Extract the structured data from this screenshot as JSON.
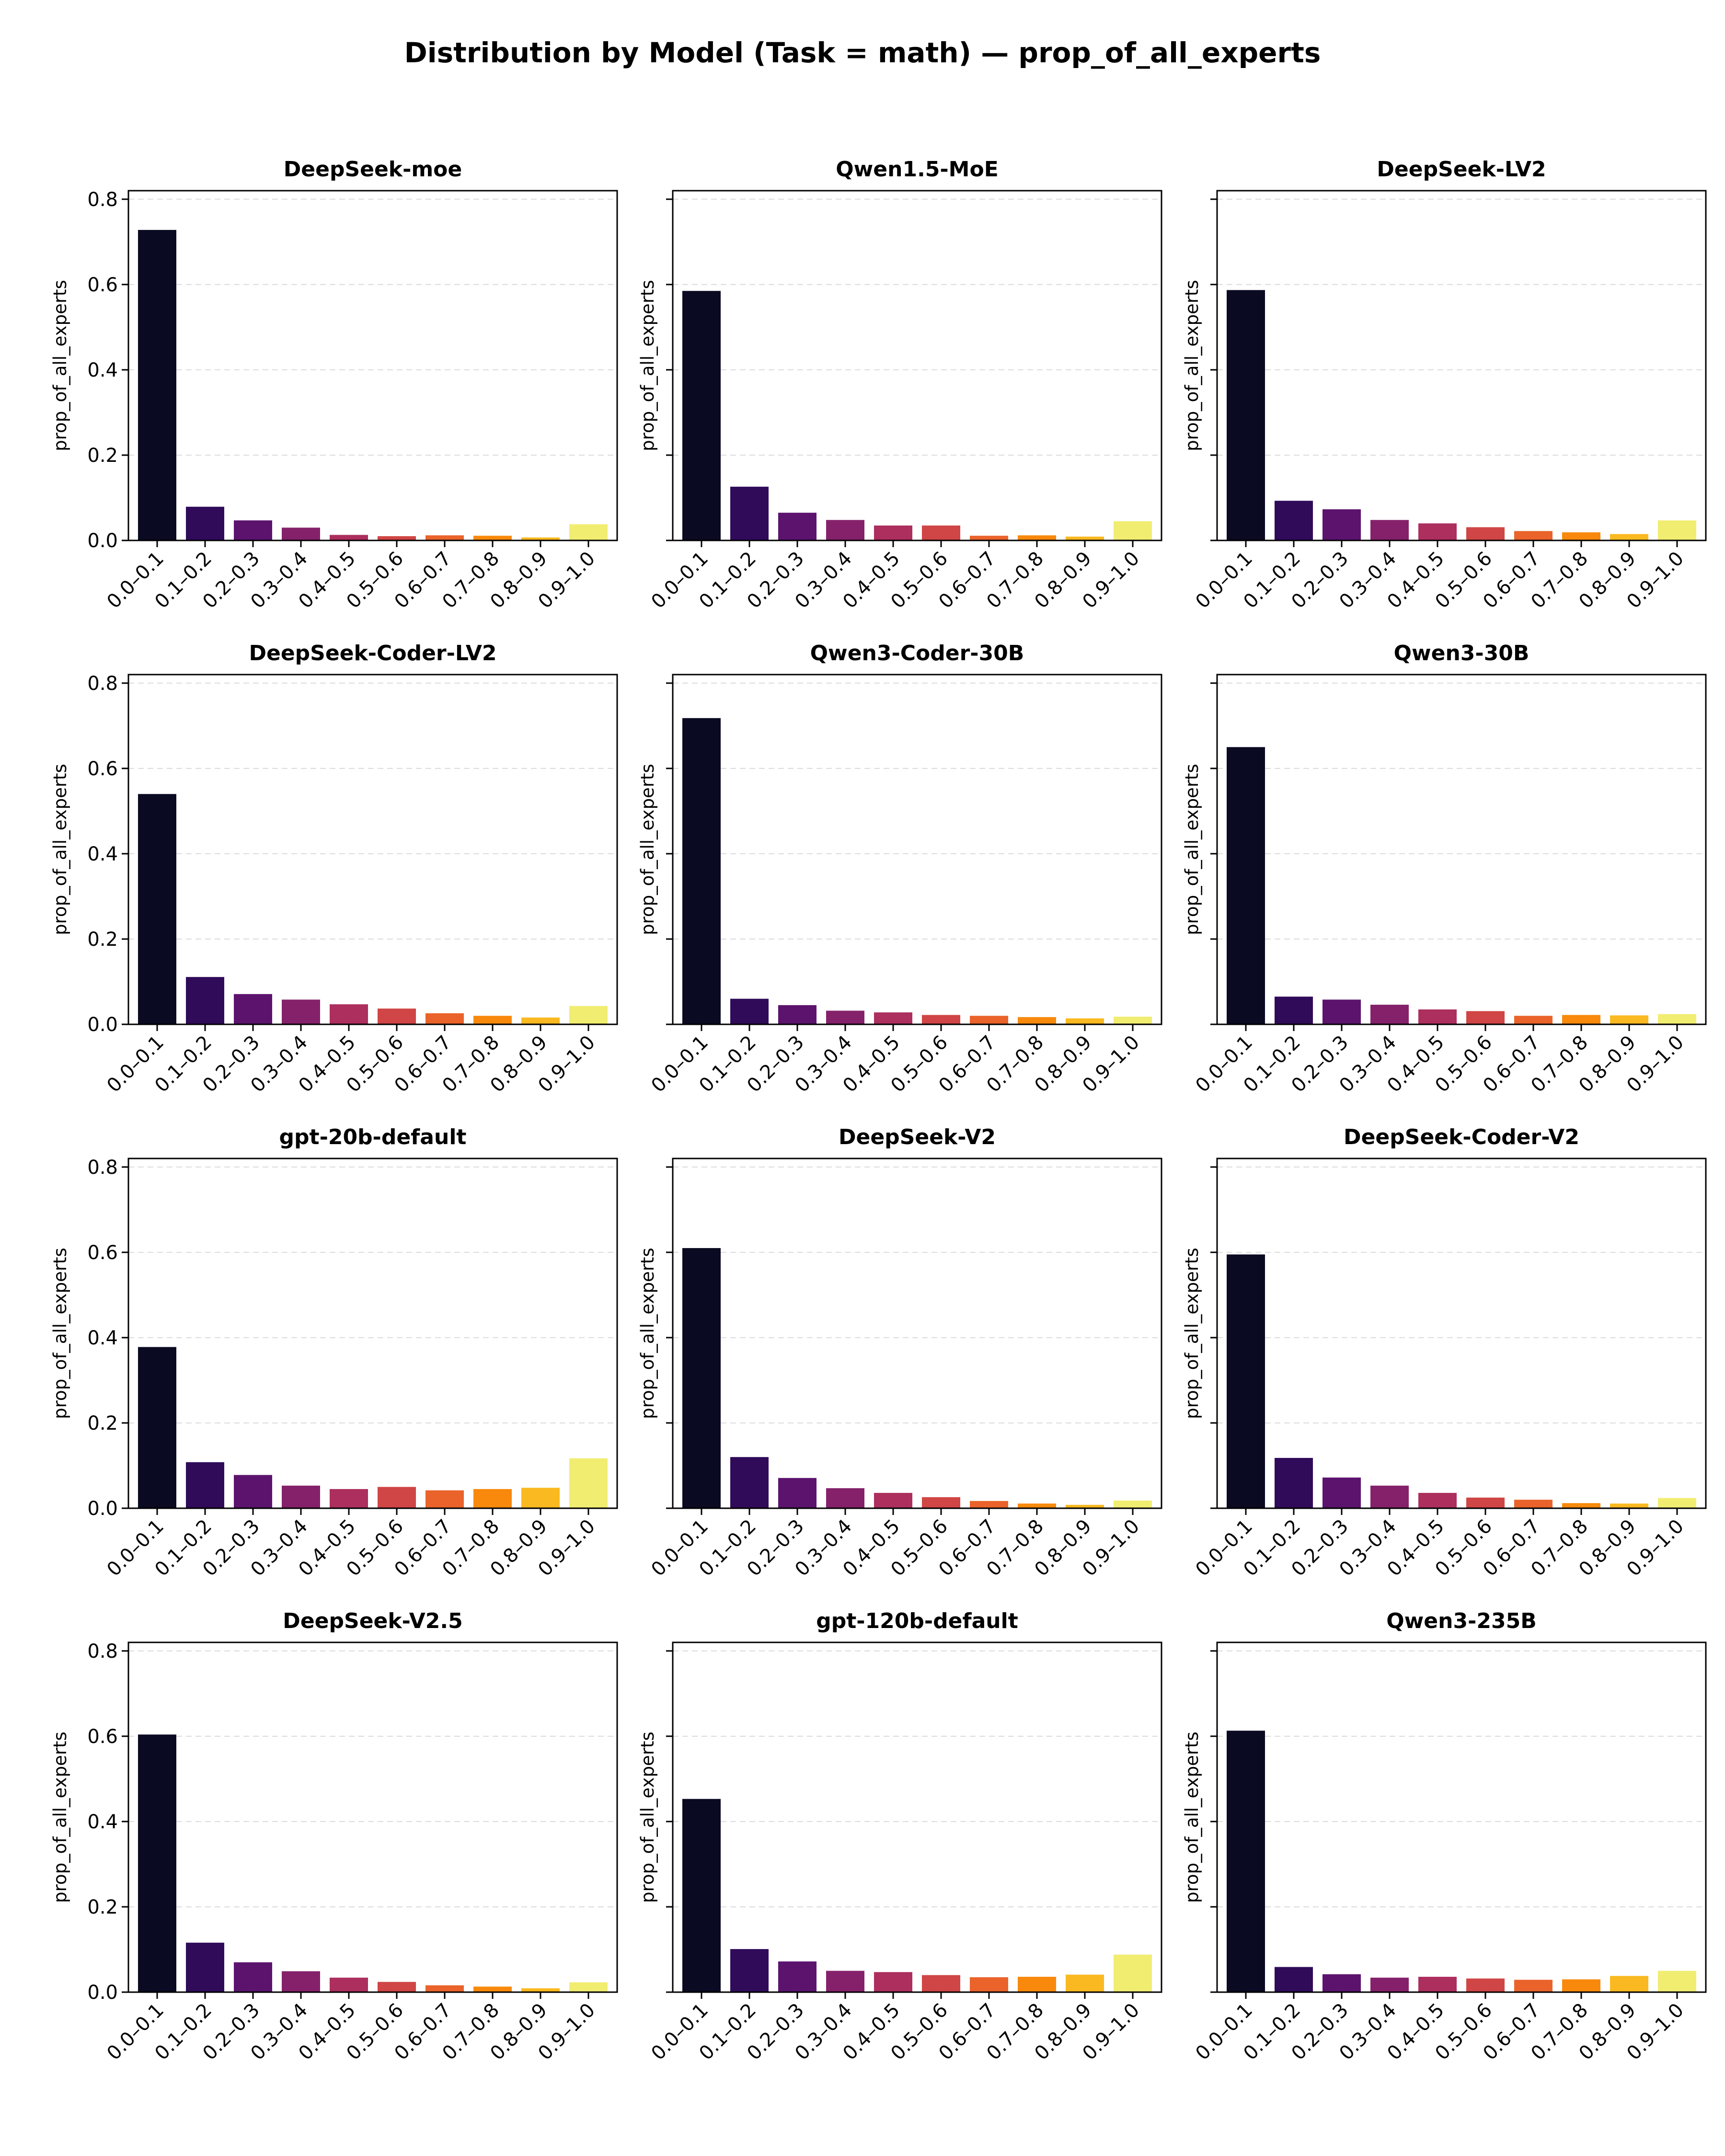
{
  "chart_data": {
    "type": "bar",
    "title": "Distribution by Model (Task = math) — prop_of_all_experts",
    "ylabel": "prop_of_all_experts",
    "ylim": [
      0,
      0.82
    ],
    "yticks": [
      "0.0",
      "0.2",
      "0.4",
      "0.6",
      "0.8"
    ],
    "grid": "y dashed",
    "colors": [
      "#0a0a22",
      "#300b5a",
      "#5c136e",
      "#85216b",
      "#ac2f5e",
      "#d04545",
      "#ea632a",
      "#f8890c",
      "#fab921",
      "#f1ed71"
    ],
    "categories": [
      "0.0–0.1",
      "0.1–0.2",
      "0.2–0.3",
      "0.3–0.4",
      "0.4–0.5",
      "0.5–0.6",
      "0.6–0.7",
      "0.7–0.8",
      "0.8–0.9",
      "0.9–1.0"
    ],
    "panels": [
      {
        "name": "DeepSeek-moe",
        "values": [
          0.728,
          0.079,
          0.047,
          0.03,
          0.013,
          0.01,
          0.012,
          0.011,
          0.007,
          0.038
        ]
      },
      {
        "name": "Qwen1.5-MoE",
        "values": [
          0.585,
          0.126,
          0.065,
          0.048,
          0.035,
          0.035,
          0.011,
          0.012,
          0.009,
          0.045
        ]
      },
      {
        "name": "DeepSeek-LV2",
        "values": [
          0.587,
          0.093,
          0.073,
          0.048,
          0.04,
          0.031,
          0.022,
          0.019,
          0.015,
          0.047
        ]
      },
      {
        "name": "DeepSeek-Coder-LV2",
        "values": [
          0.54,
          0.111,
          0.071,
          0.058,
          0.047,
          0.037,
          0.026,
          0.02,
          0.016,
          0.043
        ]
      },
      {
        "name": "Qwen3-Coder-30B",
        "values": [
          0.718,
          0.06,
          0.045,
          0.032,
          0.028,
          0.022,
          0.02,
          0.017,
          0.014,
          0.018
        ]
      },
      {
        "name": "Qwen3-30B",
        "values": [
          0.65,
          0.065,
          0.058,
          0.046,
          0.035,
          0.031,
          0.02,
          0.022,
          0.021,
          0.024
        ]
      },
      {
        "name": "gpt-20b-default",
        "values": [
          0.378,
          0.108,
          0.078,
          0.053,
          0.045,
          0.05,
          0.042,
          0.045,
          0.048,
          0.117
        ]
      },
      {
        "name": "DeepSeek-V2",
        "values": [
          0.61,
          0.12,
          0.071,
          0.047,
          0.036,
          0.026,
          0.017,
          0.011,
          0.008,
          0.018
        ]
      },
      {
        "name": "DeepSeek-Coder-V2",
        "values": [
          0.595,
          0.118,
          0.072,
          0.053,
          0.036,
          0.025,
          0.02,
          0.012,
          0.011,
          0.024
        ]
      },
      {
        "name": "DeepSeek-V2.5",
        "values": [
          0.604,
          0.116,
          0.07,
          0.049,
          0.034,
          0.024,
          0.016,
          0.013,
          0.009,
          0.023
        ]
      },
      {
        "name": "gpt-120b-default",
        "values": [
          0.453,
          0.101,
          0.072,
          0.05,
          0.047,
          0.04,
          0.035,
          0.036,
          0.041,
          0.088
        ]
      },
      {
        "name": "Qwen3-235B",
        "values": [
          0.613,
          0.059,
          0.042,
          0.034,
          0.036,
          0.032,
          0.029,
          0.03,
          0.038,
          0.05
        ]
      }
    ]
  }
}
